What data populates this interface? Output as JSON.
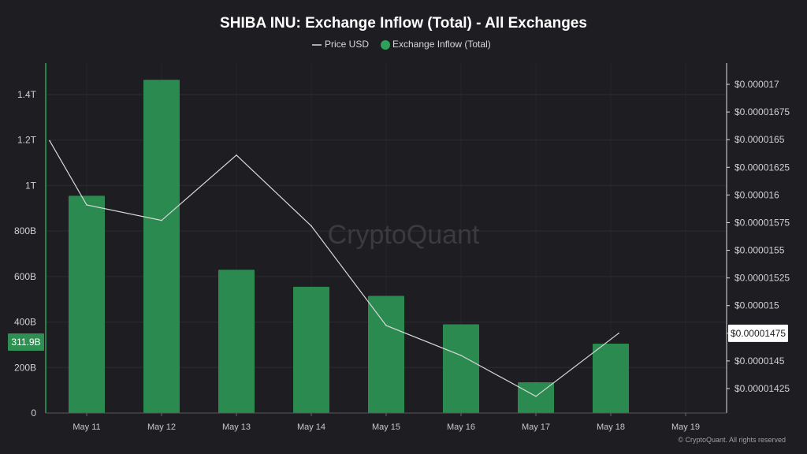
{
  "chart_data": {
    "type": "bar",
    "title": "SHIBA INU: Exchange Inflow (Total) - All Exchanges",
    "categories": [
      "May 11",
      "May 12",
      "May 13",
      "May 14",
      "May 15",
      "May 16",
      "May 17",
      "May 18",
      "May 19"
    ],
    "series": [
      {
        "name": "Exchange Inflow (Total)",
        "type": "bar",
        "axis": "left",
        "color": "#2a8a50",
        "values": [
          955000000000,
          1465000000000,
          630000000000,
          555000000000,
          515000000000,
          390000000000,
          135000000000,
          305000000000,
          null
        ]
      },
      {
        "name": "Price USD",
        "type": "line",
        "axis": "right",
        "color": "#d9d9d9",
        "values": [
          1.649e-05,
          1.591e-05,
          1.577e-05,
          1.636e-05,
          1.572e-05,
          1.482e-05,
          1.455e-05,
          1.418e-05,
          1.475e-05
        ]
      }
    ],
    "ylim_left": [
      0,
      1400000000000
    ],
    "ylim_right": [
      1.425e-05,
      1.7e-05
    ],
    "left_ticks": [
      "0",
      "200B",
      "400B",
      "600B",
      "800B",
      "1T",
      "1.2T",
      "1.4T"
    ],
    "right_ticks": [
      "$0.00001425",
      "$0.0000145",
      "$0.00001475",
      "$0.000015",
      "$0.00001525",
      "$0.0000155",
      "$0.00001575",
      "$0.000016",
      "$0.00001625",
      "$0.0000165",
      "$0.00001675",
      "$0.000017"
    ],
    "left_badge": "311.9B",
    "right_badge": "$0.00001475",
    "legend_placement": "top-center",
    "grid": true
  },
  "legend": {
    "price_label": "Price USD",
    "inflow_label": "Exchange Inflow (Total)"
  },
  "watermark": "CryptoQuant",
  "copyright": "© CryptoQuant. All rights reserved",
  "colors": {
    "background": "#1e1e22",
    "bar": "#2a8a50",
    "line": "#d9d9d9",
    "left_axis": "#2fa05a",
    "grid": "#2c2c31"
  }
}
